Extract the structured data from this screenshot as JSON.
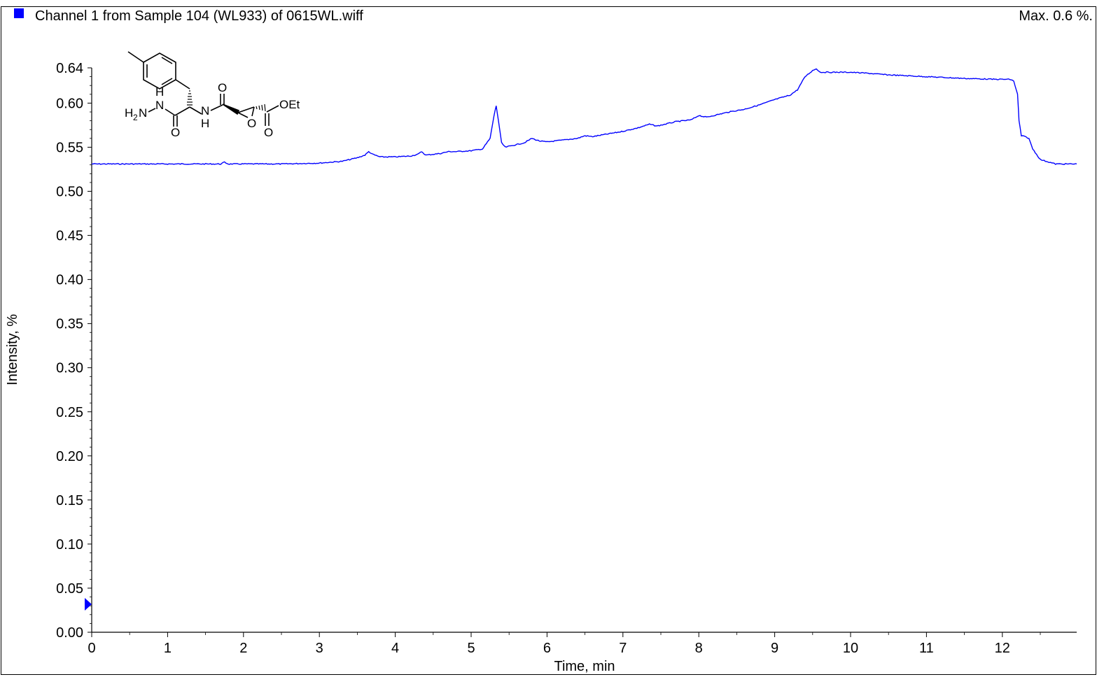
{
  "legend": {
    "label": "Channel 1 from Sample 104 (WL933) of 0615WL.wiff",
    "swatch_color": "#0000ff"
  },
  "max_label": "Max. 0.6 %.",
  "molecule_labels": {
    "h2n": "H",
    "h2n_sub": "2",
    "h2n_n": "N",
    "nh1_h": "H",
    "nh1_n": "N",
    "nh2_n": "N",
    "nh2_h": "H",
    "o_amide1": "O",
    "o_amide2": "O",
    "o_epoxide": "O",
    "o_ester": "O",
    "oet": "OEt"
  },
  "chart_data": {
    "type": "line",
    "xlabel": "Time, min",
    "ylabel": "Intensity, %",
    "xlim": [
      0,
      13
    ],
    "ylim": [
      0,
      0.64
    ],
    "x_ticks": [
      "0",
      "1",
      "2",
      "3",
      "4",
      "5",
      "6",
      "7",
      "8",
      "9",
      "10",
      "11",
      "12"
    ],
    "y_ticks": [
      "0.00",
      "0.05",
      "0.10",
      "0.15",
      "0.20",
      "0.25",
      "0.30",
      "0.35",
      "0.40",
      "0.45",
      "0.50",
      "0.55",
      "0.60",
      "0.64"
    ],
    "y_tick_values": [
      0,
      0.05,
      0.1,
      0.15,
      0.2,
      0.25,
      0.3,
      0.35,
      0.4,
      0.45,
      0.5,
      0.55,
      0.6,
      0.64
    ],
    "line_color": "#0000ff",
    "grid": false,
    "series": [
      {
        "x": [
          0,
          0.5,
          1.0,
          1.5,
          1.7,
          1.75,
          1.8,
          2.0,
          2.5,
          3.0,
          3.3,
          3.5,
          3.6,
          3.65,
          3.7,
          3.8,
          4.0,
          4.2,
          4.3,
          4.35,
          4.4,
          4.6,
          4.7,
          4.8,
          5.0,
          5.15,
          5.25,
          5.3,
          5.33,
          5.36,
          5.4,
          5.45,
          5.55,
          5.7,
          5.8,
          5.9,
          6.0,
          6.2,
          6.4,
          6.5,
          6.6,
          6.8,
          7.0,
          7.2,
          7.35,
          7.45,
          7.7,
          7.9,
          8.0,
          8.1,
          8.3,
          8.4,
          8.6,
          8.8,
          9.0,
          9.2,
          9.3,
          9.4,
          9.5,
          9.55,
          9.6,
          9.8,
          10.0,
          10.2,
          10.5,
          11.0,
          11.5,
          11.9,
          12.1,
          12.15,
          12.2,
          12.22,
          12.25,
          12.3,
          12.35,
          12.4,
          12.5,
          12.7,
          12.85,
          13.0
        ],
        "y": [
          0.531,
          0.531,
          0.531,
          0.531,
          0.531,
          0.533,
          0.531,
          0.531,
          0.531,
          0.532,
          0.534,
          0.538,
          0.541,
          0.545,
          0.542,
          0.539,
          0.539,
          0.54,
          0.542,
          0.545,
          0.541,
          0.543,
          0.545,
          0.545,
          0.546,
          0.548,
          0.56,
          0.585,
          0.597,
          0.58,
          0.555,
          0.55,
          0.552,
          0.555,
          0.56,
          0.557,
          0.556,
          0.558,
          0.56,
          0.563,
          0.562,
          0.565,
          0.568,
          0.572,
          0.576,
          0.574,
          0.579,
          0.581,
          0.586,
          0.584,
          0.588,
          0.59,
          0.593,
          0.598,
          0.604,
          0.609,
          0.615,
          0.63,
          0.637,
          0.639,
          0.635,
          0.635,
          0.635,
          0.634,
          0.632,
          0.63,
          0.628,
          0.627,
          0.627,
          0.625,
          0.61,
          0.58,
          0.563,
          0.562,
          0.56,
          0.548,
          0.536,
          0.531,
          0.531,
          0.531
        ]
      }
    ]
  }
}
